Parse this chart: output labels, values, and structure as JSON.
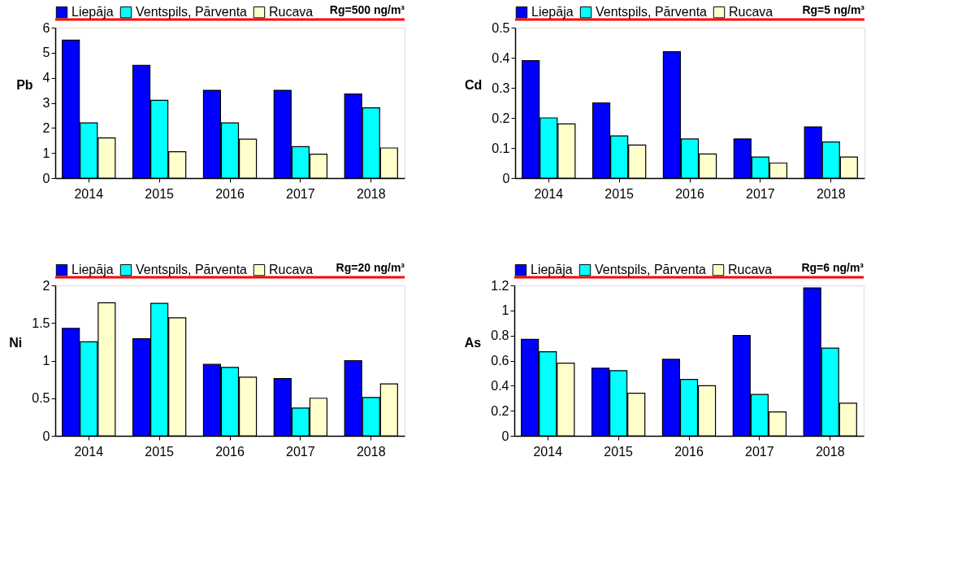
{
  "chart_data": [
    {
      "type": "bar",
      "ylabel": "Pb",
      "categories": [
        "2014",
        "2015",
        "2016",
        "2017",
        "2018"
      ],
      "ylim": [
        0,
        6
      ],
      "yticks": [
        0,
        1,
        2,
        3,
        4,
        5,
        6
      ],
      "legend": "top",
      "grid": false,
      "annotations": [
        "Rg=500 ng/m³"
      ],
      "series": [
        {
          "name": "Liepāja",
          "color": "#0000ff",
          "values": [
            5.5,
            4.5,
            3.5,
            3.5,
            3.35
          ]
        },
        {
          "name": "Ventspils, Pārventa",
          "color": "#00ffff",
          "values": [
            2.2,
            3.1,
            2.2,
            1.25,
            2.8
          ]
        },
        {
          "name": "Rucava",
          "color": "#ffffcc",
          "values": [
            1.6,
            1.05,
            1.55,
            0.95,
            1.2
          ]
        }
      ]
    },
    {
      "type": "bar",
      "ylabel": "Cd",
      "categories": [
        "2014",
        "2015",
        "2016",
        "2017",
        "2018"
      ],
      "ylim": [
        0,
        0.5
      ],
      "yticks": [
        0,
        0.1,
        0.2,
        0.3,
        0.4,
        0.5
      ],
      "legend": "top",
      "grid": false,
      "annotations": [
        "Rg=5 ng/m³"
      ],
      "series": [
        {
          "name": "Liepāja",
          "color": "#0000ff",
          "values": [
            0.39,
            0.25,
            0.42,
            0.13,
            0.17
          ]
        },
        {
          "name": "Ventspils, Pārventa",
          "color": "#00ffff",
          "values": [
            0.2,
            0.14,
            0.13,
            0.07,
            0.12
          ]
        },
        {
          "name": "Rucava",
          "color": "#ffffcc",
          "values": [
            0.18,
            0.11,
            0.08,
            0.05,
            0.07
          ]
        }
      ]
    },
    {
      "type": "bar",
      "ylabel": "Ni",
      "categories": [
        "2014",
        "2015",
        "2016",
        "2017",
        "2018"
      ],
      "ylim": [
        0,
        2
      ],
      "yticks": [
        0,
        0.5,
        1,
        1.5,
        2
      ],
      "legend": "top",
      "grid": false,
      "annotations": [
        "Rg=20 ng/m³"
      ],
      "series": [
        {
          "name": "Liepāja",
          "color": "#0000ff",
          "values": [
            1.43,
            1.29,
            0.95,
            0.76,
            1.0
          ]
        },
        {
          "name": "Ventspils, Pārventa",
          "color": "#00ffff",
          "values": [
            1.25,
            1.76,
            0.91,
            0.37,
            0.51
          ]
        },
        {
          "name": "Rucava",
          "color": "#ffffcc",
          "values": [
            1.77,
            1.57,
            0.78,
            0.5,
            0.69
          ]
        }
      ]
    },
    {
      "type": "bar",
      "ylabel": "As",
      "categories": [
        "2014",
        "2015",
        "2016",
        "2017",
        "2018"
      ],
      "ylim": [
        0,
        1.2
      ],
      "yticks": [
        0,
        0.2,
        0.4,
        0.6,
        0.8,
        1,
        1.2
      ],
      "legend": "top",
      "grid": false,
      "annotations": [
        "Rg=6 ng/m³"
      ],
      "series": [
        {
          "name": "Liepāja",
          "color": "#0000ff",
          "values": [
            0.77,
            0.54,
            0.61,
            0.8,
            1.18
          ]
        },
        {
          "name": "Ventspils, Pārventa",
          "color": "#00ffff",
          "values": [
            0.67,
            0.52,
            0.45,
            0.33,
            0.7
          ]
        },
        {
          "name": "Rucava",
          "color": "#ffffcc",
          "values": [
            0.58,
            0.34,
            0.4,
            0.19,
            0.26
          ]
        }
      ]
    }
  ]
}
